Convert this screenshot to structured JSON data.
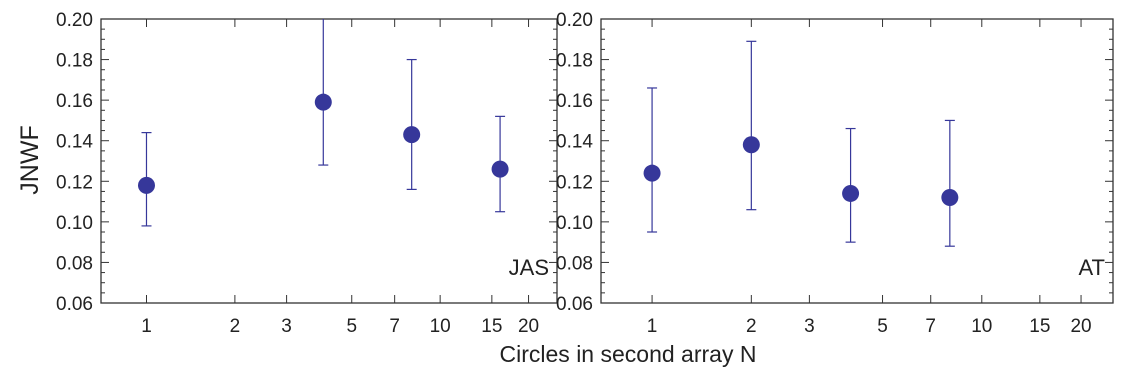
{
  "chart_data": [
    {
      "type": "scatter",
      "panel_label": "JAS",
      "xscale": "log",
      "xlim": [
        0.7,
        25
      ],
      "ylim": [
        0.06,
        0.2
      ],
      "xlabel": "Circles in second array N",
      "ylabel": "JNWF",
      "x_ticks": [
        "1",
        "2",
        "3",
        "5",
        "7",
        "10",
        "15",
        "20"
      ],
      "y_ticks": [
        "0.06",
        "0.08",
        "0.10",
        "0.12",
        "0.14",
        "0.16",
        "0.18",
        "0.20"
      ],
      "grid": false,
      "color": "#36379a",
      "points": [
        {
          "x": 1,
          "y": 0.118,
          "err_low": 0.098,
          "err_high": 0.144
        },
        {
          "x": 4,
          "y": 0.159,
          "err_low": 0.128,
          "err_high": 0.2
        },
        {
          "x": 8,
          "y": 0.143,
          "err_low": 0.116,
          "err_high": 0.18
        },
        {
          "x": 16,
          "y": 0.126,
          "err_low": 0.105,
          "err_high": 0.152
        }
      ]
    },
    {
      "type": "scatter",
      "panel_label": "AT",
      "xscale": "log",
      "xlim": [
        0.7,
        25
      ],
      "ylim": [
        0.06,
        0.2
      ],
      "xlabel": "Circles in second array N",
      "ylabel": "",
      "x_ticks": [
        "1",
        "2",
        "3",
        "5",
        "7",
        "10",
        "15",
        "20"
      ],
      "y_ticks": [
        "0.06",
        "0.08",
        "0.10",
        "0.12",
        "0.14",
        "0.16",
        "0.18",
        "0.20"
      ],
      "grid": false,
      "color": "#36379a",
      "points": [
        {
          "x": 1,
          "y": 0.124,
          "err_low": 0.095,
          "err_high": 0.166
        },
        {
          "x": 2,
          "y": 0.138,
          "err_low": 0.106,
          "err_high": 0.189
        },
        {
          "x": 4,
          "y": 0.114,
          "err_low": 0.09,
          "err_high": 0.146
        },
        {
          "x": 8,
          "y": 0.112,
          "err_low": 0.088,
          "err_high": 0.15
        }
      ]
    }
  ]
}
